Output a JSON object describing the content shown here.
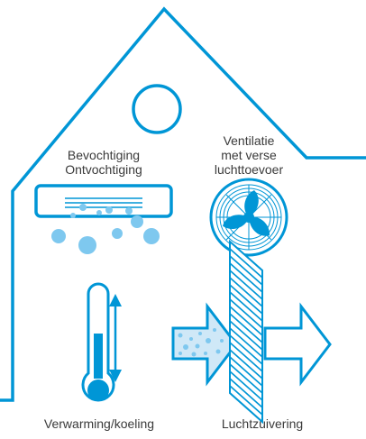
{
  "colors": {
    "blue": "#0096d6",
    "light_blue": "#7ec8ef",
    "text": "#3a3a3a"
  },
  "labels": {
    "humidify": "Bevochtiging",
    "dehumidify": "Ontvochtiging",
    "ventilation_line1": "Ventilatie",
    "ventilation_line2": "met verse",
    "ventilation_line3": "luchttoevoer",
    "heating_cooling": "Verwarming/koeling",
    "air_purification": "Luchtzuivering"
  },
  "icons": [
    "house-outline",
    "round-window-icon",
    "air-conditioner-icon",
    "fan-icon",
    "thermometer-icon",
    "up-down-arrow-icon",
    "air-filter-icon"
  ]
}
